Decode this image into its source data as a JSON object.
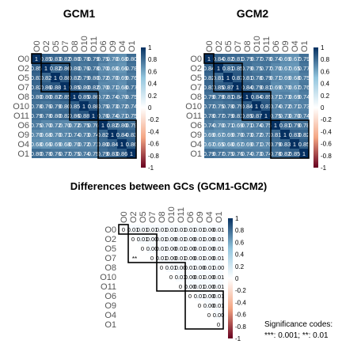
{
  "labels": [
    "O0",
    "O2",
    "O5",
    "O7",
    "O8",
    "O10",
    "O11",
    "O6",
    "O9",
    "O4",
    "O1"
  ],
  "colorbar_ticks": [
    "1",
    "0.8",
    "0.6",
    "0.4",
    "0.2",
    "0",
    "-0.2",
    "-0.4",
    "-0.6",
    "-0.8",
    "-1"
  ],
  "significance_lines": [
    "Significance codes:",
    "***: 0.001;  **: 0.01"
  ],
  "chart_data": [
    {
      "type": "heatmap",
      "title": "GCM1",
      "rows": [
        "O0",
        "O2",
        "O5",
        "O7",
        "O8",
        "O10",
        "O11",
        "O6",
        "O9",
        "O4",
        "O1"
      ],
      "cols": [
        "O0",
        "O2",
        "O5",
        "O7",
        "O8",
        "O10",
        "O11",
        "O6",
        "O9",
        "O4",
        "O1"
      ],
      "value_range": [
        -1,
        1
      ],
      "clusters": [
        [
          0,
          0
        ],
        [
          1,
          3
        ],
        [
          4,
          6
        ],
        [
          7,
          10
        ]
      ],
      "values": [
        [
          1.0,
          0.85,
          0.83,
          0.82,
          0.8,
          0.78,
          0.79,
          0.75,
          0.7,
          0.68,
          0.8
        ],
        [
          0.85,
          1.0,
          0.82,
          0.86,
          0.8,
          0.76,
          0.78,
          0.7,
          0.68,
          0.66,
          0.78
        ],
        [
          0.83,
          0.82,
          1.0,
          0.88,
          0.82,
          0.79,
          0.8,
          0.72,
          0.7,
          0.69,
          0.76
        ],
        [
          0.82,
          0.86,
          0.88,
          1.0,
          0.85,
          0.8,
          0.82,
          0.7,
          0.71,
          0.68,
          0.77
        ],
        [
          0.8,
          0.8,
          0.82,
          0.85,
          1.0,
          0.85,
          0.86,
          0.72,
          0.74,
          0.7,
          0.75
        ],
        [
          0.78,
          0.76,
          0.79,
          0.8,
          0.85,
          1.0,
          0.88,
          0.75,
          0.73,
          0.72,
          0.74
        ],
        [
          0.79,
          0.78,
          0.8,
          0.82,
          0.86,
          0.88,
          1.0,
          0.76,
          0.74,
          0.71,
          0.75
        ],
        [
          0.75,
          0.7,
          0.72,
          0.7,
          0.72,
          0.75,
          0.76,
          1.0,
          0.82,
          0.8,
          0.79
        ],
        [
          0.7,
          0.68,
          0.7,
          0.71,
          0.74,
          0.73,
          0.74,
          0.82,
          1.0,
          0.84,
          0.83
        ],
        [
          0.68,
          0.66,
          0.69,
          0.68,
          0.7,
          0.72,
          0.71,
          0.8,
          0.84,
          1.0,
          0.86
        ],
        [
          0.8,
          0.78,
          0.76,
          0.77,
          0.75,
          0.74,
          0.75,
          0.79,
          0.83,
          0.86,
          1.0
        ]
      ]
    },
    {
      "type": "heatmap",
      "title": "GCM2",
      "rows": [
        "O0",
        "O2",
        "O5",
        "O7",
        "O8",
        "O10",
        "O11",
        "O6",
        "O9",
        "O4",
        "O1"
      ],
      "cols": [
        "O0",
        "O2",
        "O5",
        "O7",
        "O8",
        "O10",
        "O11",
        "O6",
        "O9",
        "O4",
        "O1"
      ],
      "value_range": [
        -1,
        1
      ],
      "clusters": [
        [
          0,
          0
        ],
        [
          1,
          3
        ],
        [
          4,
          6
        ],
        [
          7,
          10
        ]
      ],
      "values": [
        [
          1.0,
          0.84,
          0.82,
          0.81,
          0.79,
          0.77,
          0.78,
          0.74,
          0.69,
          0.67,
          0.79
        ],
        [
          0.84,
          1.0,
          0.81,
          0.85,
          0.79,
          0.75,
          0.77,
          0.7,
          0.67,
          0.65,
          0.77
        ],
        [
          0.82,
          0.81,
          1.0,
          0.87,
          0.81,
          0.78,
          0.79,
          0.71,
          0.69,
          0.68,
          0.75
        ],
        [
          0.81,
          0.85,
          0.87,
          1.0,
          0.84,
          0.79,
          0.81,
          0.69,
          0.7,
          0.67,
          0.76
        ],
        [
          0.79,
          0.79,
          0.81,
          0.84,
          1.0,
          0.84,
          0.85,
          0.71,
          0.73,
          0.69,
          0.74
        ],
        [
          0.77,
          0.75,
          0.78,
          0.79,
          0.84,
          1.0,
          0.87,
          0.74,
          0.72,
          0.71,
          0.73
        ],
        [
          0.78,
          0.77,
          0.79,
          0.81,
          0.85,
          0.87,
          1.0,
          0.75,
          0.73,
          0.7,
          0.74
        ],
        [
          0.74,
          0.7,
          0.71,
          0.69,
          0.71,
          0.74,
          0.75,
          1.0,
          0.81,
          0.79,
          0.78
        ],
        [
          0.69,
          0.67,
          0.69,
          0.7,
          0.73,
          0.72,
          0.73,
          0.81,
          1.0,
          0.83,
          0.82
        ],
        [
          0.67,
          0.65,
          0.68,
          0.67,
          0.69,
          0.71,
          0.7,
          0.79,
          0.83,
          1.0,
          0.85
        ],
        [
          0.79,
          0.77,
          0.75,
          0.76,
          0.74,
          0.73,
          0.74,
          0.78,
          0.82,
          0.85,
          1.0
        ]
      ]
    },
    {
      "type": "heatmap",
      "title": "Differences between GCs (GCM1-GCM2)",
      "triangle": "upper",
      "rows": [
        "O0",
        "O2",
        "O5",
        "O7",
        "O8",
        "O10",
        "O11",
        "O6",
        "O9",
        "O4",
        "O1"
      ],
      "cols": [
        "O0",
        "O2",
        "O5",
        "O7",
        "O8",
        "O10",
        "O11",
        "O6",
        "O9",
        "O4",
        "O1"
      ],
      "value_range": [
        -1,
        1
      ],
      "clusters": [
        [
          0,
          0
        ],
        [
          1,
          3
        ],
        [
          4,
          6
        ],
        [
          7,
          10
        ]
      ],
      "cell_text": [
        [
          "0",
          "0.01",
          "0.01",
          "0.01",
          "0.01",
          "0.01",
          "0.01",
          "0.01",
          "0.01",
          "0.00",
          "0.01"
        ],
        [
          "",
          "0",
          "0.01",
          "0.00",
          "0.01",
          "0.00",
          "0.01",
          "0.00",
          "0.01",
          "0.00",
          "0.01"
        ],
        [
          "",
          "",
          "0",
          "0.00",
          "0.01",
          "0.00",
          "0.01",
          "0.00",
          "0.01",
          "0.00",
          "0.01"
        ],
        [
          "",
          "",
          "",
          "0",
          "0.01",
          "0.00",
          "0.01",
          "0.00",
          "0.01",
          "0.00",
          "0.01"
        ],
        [
          "",
          "",
          "",
          "",
          "0",
          "0.01",
          "0.00",
          "0.01",
          "0.00",
          "0.01",
          "0.00"
        ],
        [
          "",
          "",
          "",
          "",
          "",
          "0",
          "0.01",
          "0.00",
          "0.01",
          "0.00",
          "0.01"
        ],
        [
          "",
          "",
          "",
          "",
          "",
          "",
          "0",
          "0.00",
          "0.01",
          "0.00",
          "0.01"
        ],
        [
          "",
          "",
          "",
          "",
          "",
          "",
          "",
          "0",
          "0.01",
          "0.00",
          "0.01"
        ],
        [
          "",
          "",
          "",
          "",
          "",
          "",
          "",
          "",
          "0",
          "0.00",
          "0.01"
        ],
        [
          "",
          "",
          "",
          "",
          "",
          "",
          "",
          "",
          "",
          "0",
          "0.00"
        ],
        [
          "",
          "",
          "",
          "",
          "",
          "",
          "",
          "",
          "",
          "",
          "0"
        ]
      ],
      "stars": [
        {
          "row": 3,
          "col": 0,
          "text": "**"
        }
      ]
    }
  ]
}
